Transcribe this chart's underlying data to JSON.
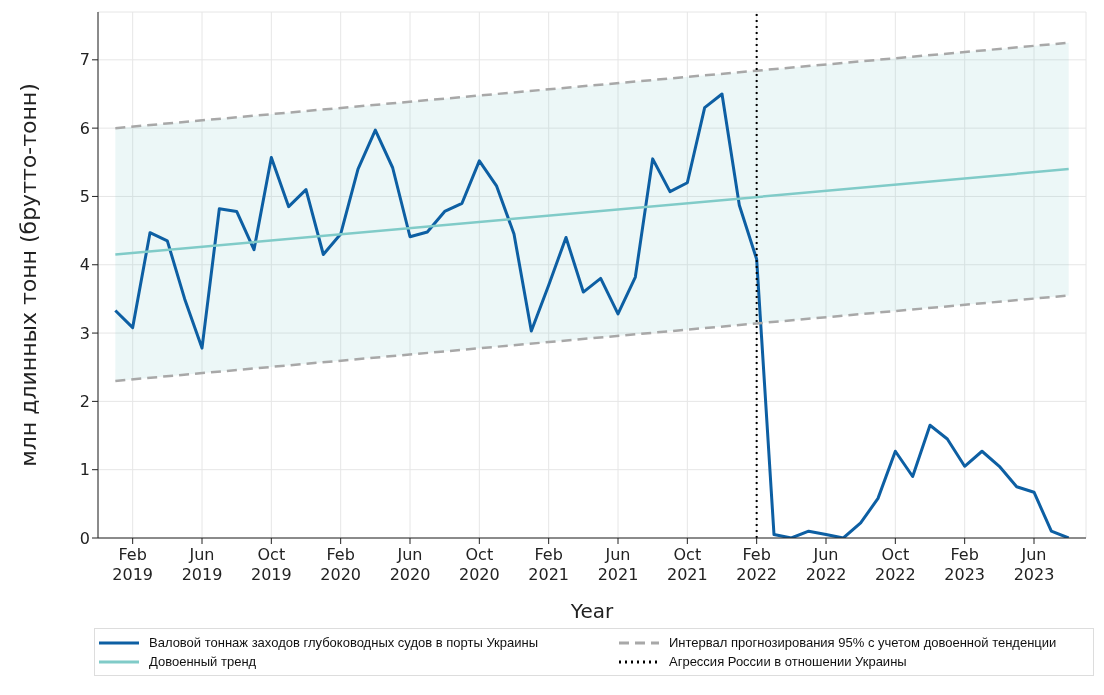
{
  "chart_data": {
    "type": "line",
    "xlabel": "Year",
    "ylabel": "млн длинных тонн (брутто-тонн)",
    "x": [
      "2019-01",
      "2019-02",
      "2019-03",
      "2019-04",
      "2019-05",
      "2019-06",
      "2019-07",
      "2019-08",
      "2019-09",
      "2019-10",
      "2019-11",
      "2019-12",
      "2020-01",
      "2020-02",
      "2020-03",
      "2020-04",
      "2020-05",
      "2020-06",
      "2020-07",
      "2020-08",
      "2020-09",
      "2020-10",
      "2020-11",
      "2020-12",
      "2021-01",
      "2021-02",
      "2021-03",
      "2021-04",
      "2021-05",
      "2021-06",
      "2021-07",
      "2021-08",
      "2021-09",
      "2021-10",
      "2021-11",
      "2021-12",
      "2022-01",
      "2022-02",
      "2022-03",
      "2022-04",
      "2022-05",
      "2022-06",
      "2022-07",
      "2022-08",
      "2022-09",
      "2022-10",
      "2022-11",
      "2022-12",
      "2023-01",
      "2023-02",
      "2023-03",
      "2023-04",
      "2023-05",
      "2023-06",
      "2023-07",
      "2023-08"
    ],
    "series": [
      {
        "name": "Валовой тоннаж заходов глубоководных судов в порты Украины",
        "color": "#0d5fa3",
        "values": [
          3.33,
          3.08,
          4.47,
          4.35,
          3.5,
          2.78,
          4.82,
          4.78,
          4.22,
          5.57,
          4.85,
          5.1,
          4.15,
          4.45,
          5.4,
          5.97,
          5.42,
          4.41,
          4.48,
          4.78,
          4.9,
          5.52,
          5.15,
          4.45,
          3.03,
          3.7,
          4.4,
          3.6,
          3.8,
          3.28,
          3.82,
          5.55,
          5.07,
          5.2,
          6.3,
          6.5,
          4.87,
          4.08,
          0.05,
          0.0,
          0.1,
          0.05,
          0.0,
          0.22,
          0.58,
          1.27,
          0.9,
          1.65,
          1.45,
          1.05,
          1.27,
          1.05,
          0.75,
          0.67,
          0.1,
          0.0
        ]
      },
      {
        "name": "Довоенный тренд",
        "color": "#80cbc8",
        "x": [
          "2019-01",
          "2023-08"
        ],
        "values": [
          4.15,
          5.4
        ],
        "lower": [
          2.3,
          3.55
        ],
        "upper": [
          6.0,
          7.25
        ]
      },
      {
        "name": "Интервал прогнозирования 95% с учетом довоенной тенденции",
        "color": "#a8a8a8",
        "line_style": "dashed",
        "x": [
          "2019-01",
          "2023-08"
        ],
        "values": [
          6.0,
          7.25
        ]
      },
      {
        "color": "#a8a8a8",
        "line_style": "dashed",
        "x": [
          "2019-01",
          "2023-08"
        ],
        "values": [
          2.3,
          3.55
        ]
      }
    ],
    "ref_lines": [
      {
        "axis": "x",
        "value": "2022-02",
        "label": "Агрессия России в отношении Украины",
        "color": "#000000",
        "line_style": "dotted"
      }
    ],
    "xlim": [
      "2018-12",
      "2023-09"
    ],
    "xticks": [
      {
        "value": "2019-02",
        "label": "Feb 2019"
      },
      {
        "value": "2019-06",
        "label": "Jun 2019"
      },
      {
        "value": "2019-10",
        "label": "Oct 2019"
      },
      {
        "value": "2020-02",
        "label": "Feb 2020"
      },
      {
        "value": "2020-06",
        "label": "Jun 2020"
      },
      {
        "value": "2020-10",
        "label": "Oct 2020"
      },
      {
        "value": "2021-02",
        "label": "Feb 2021"
      },
      {
        "value": "2021-06",
        "label": "Jun 2021"
      },
      {
        "value": "2021-10",
        "label": "Oct 2021"
      },
      {
        "value": "2022-02",
        "label": "Feb 2022"
      },
      {
        "value": "2022-06",
        "label": "Jun 2022"
      },
      {
        "value": "2022-10",
        "label": "Oct 2022"
      },
      {
        "value": "2023-02",
        "label": "Feb 2023"
      },
      {
        "value": "2023-06",
        "label": "Jun 2023"
      }
    ],
    "ylim": [
      0,
      7.7
    ],
    "yticks": [
      0,
      1,
      2,
      3,
      4,
      5,
      6,
      7
    ],
    "grid": true,
    "legend": "bottom",
    "marker": "none",
    "line_style": "solid"
  }
}
